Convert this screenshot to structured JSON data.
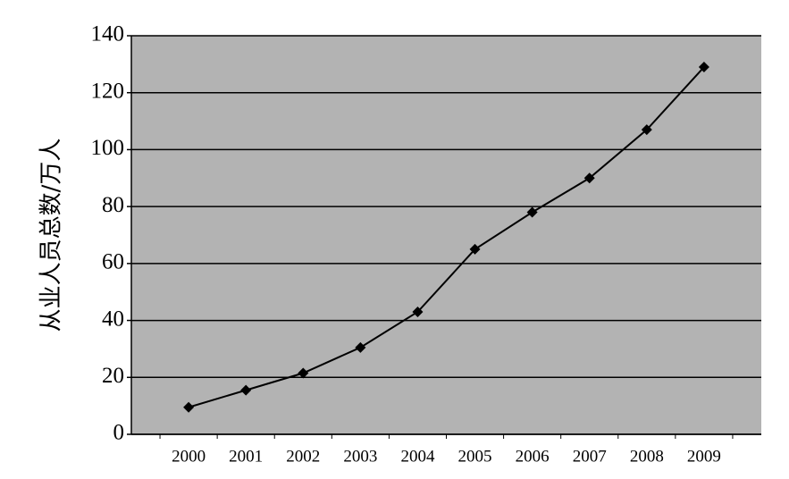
{
  "chart_data": {
    "type": "line",
    "y_label": "从业人员总数/万人",
    "categories": [
      "2000",
      "2001",
      "2002",
      "2003",
      "2004",
      "2005",
      "2006",
      "2007",
      "2008",
      "2009"
    ],
    "series": [
      {
        "name": "从业人员总数",
        "color": "#000000",
        "values": [
          9.5,
          15.5,
          21.5,
          30.5,
          43,
          65,
          78,
          90,
          107,
          129
        ]
      }
    ],
    "ylim": [
      0,
      140
    ],
    "yticks": [
      0,
      20,
      40,
      60,
      80,
      100,
      120,
      140
    ],
    "grid": true
  }
}
